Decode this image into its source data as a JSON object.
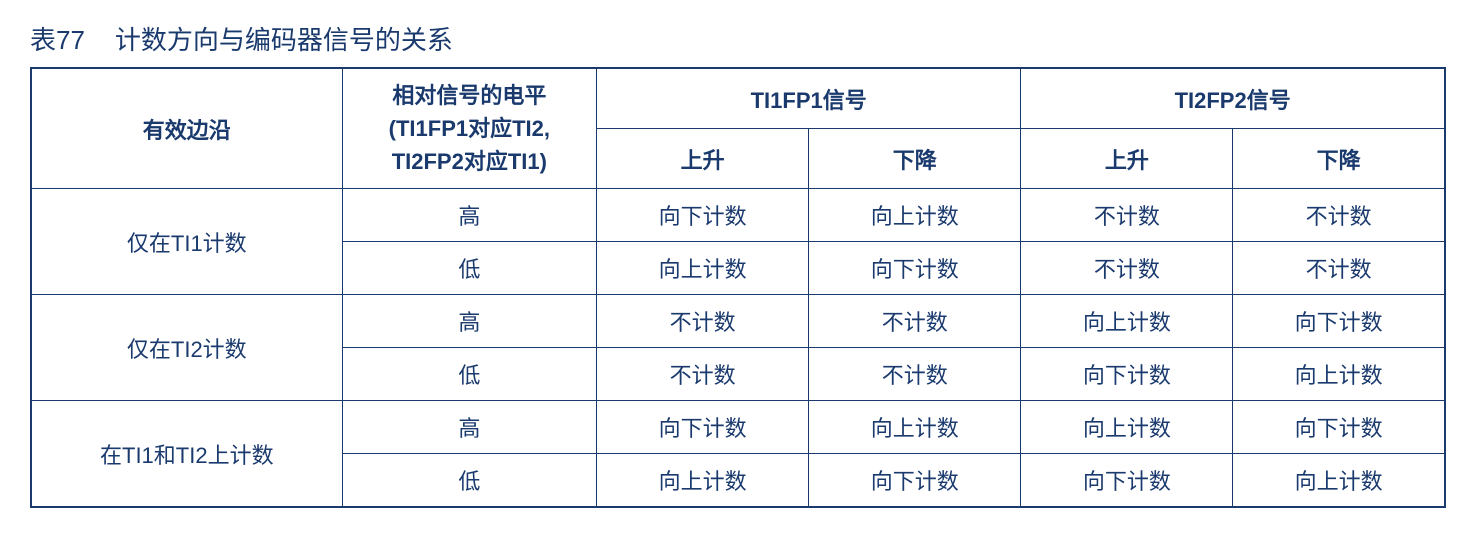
{
  "caption": {
    "number": "表77",
    "title": "计数方向与编码器信号的关系"
  },
  "headers": {
    "activeEdge": "有效边沿",
    "relativeLevel": "相对信号的电平",
    "relativeLevelSub1": "(TI1FP1对应TI2,",
    "relativeLevelSub2": "TI2FP2对应TI1)",
    "ti1fp1": "TI1FP1信号",
    "ti2fp2": "TI2FP2信号",
    "rising": "上升",
    "falling": "下降"
  },
  "rows": [
    {
      "edge": "仅在TI1计数",
      "sub": [
        {
          "level": "高",
          "c1": "向下计数",
          "c2": "向上计数",
          "c3": "不计数",
          "c4": "不计数"
        },
        {
          "level": "低",
          "c1": "向上计数",
          "c2": "向下计数",
          "c3": "不计数",
          "c4": "不计数"
        }
      ]
    },
    {
      "edge": "仅在TI2计数",
      "sub": [
        {
          "level": "高",
          "c1": "不计数",
          "c2": "不计数",
          "c3": "向上计数",
          "c4": "向下计数"
        },
        {
          "level": "低",
          "c1": "不计数",
          "c2": "不计数",
          "c3": "向下计数",
          "c4": "向上计数"
        }
      ]
    },
    {
      "edge": "在TI1和TI2上计数",
      "sub": [
        {
          "level": "高",
          "c1": "向下计数",
          "c2": "向上计数",
          "c3": "向上计数",
          "c4": "向下计数"
        },
        {
          "level": "低",
          "c1": "向上计数",
          "c2": "向下计数",
          "c3": "向下计数",
          "c4": "向上计数"
        }
      ]
    }
  ],
  "style": {
    "borderColor": "#1a3a6e",
    "textColor": "#1a3a6e",
    "background": "#ffffff",
    "fontSize": 22,
    "captionFontSize": 26
  }
}
